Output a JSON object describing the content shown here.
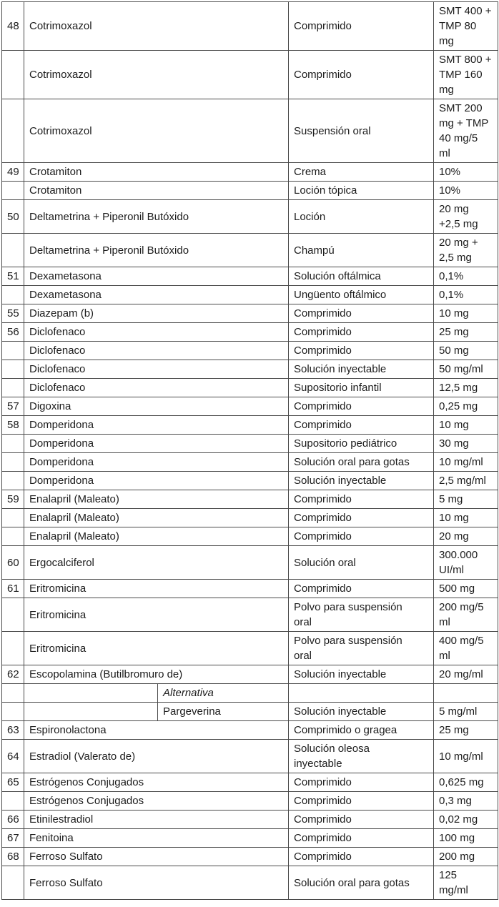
{
  "page": {
    "background_color": "#ffffff",
    "text_color": "#1c1c1c",
    "border_color": "#4a4a4a"
  },
  "table": {
    "rows": [
      {
        "num": "48",
        "name": "Cotrimoxazol",
        "form": "Comprimido",
        "dose": "SMT 400 +\nTMP 80\nmg"
      },
      {
        "num": "",
        "name": "Cotrimoxazol",
        "form": "Comprimido",
        "dose": "SMT 800 +\nTMP 160\nmg"
      },
      {
        "num": "",
        "name": "Cotrimoxazol",
        "form": "Suspensión oral",
        "dose": "SMT 200\nmg + TMP\n40 mg/5\nml"
      },
      {
        "num": "49",
        "name": "Crotamiton",
        "form": "Crema",
        "dose": "10%"
      },
      {
        "num": "",
        "name": "Crotamiton",
        "form": "Loción tópica",
        "dose": "10%"
      },
      {
        "num": "50",
        "name": "Deltametrina + Piperonil Butóxido",
        "form": "Loción",
        "dose": "20 mg\n+2,5 mg"
      },
      {
        "num": "",
        "name": "Deltametrina + Piperonil Butóxido",
        "form": "Champú",
        "dose": "20 mg +\n2,5 mg"
      },
      {
        "num": "51",
        "name": "Dexametasona",
        "form": "Solución oftálmica",
        "dose": "0,1%"
      },
      {
        "num": "",
        "name": "Dexametasona",
        "form": "Ungüento oftálmico",
        "dose": "0,1%"
      },
      {
        "num": "55",
        "name": "Diazepam (b)",
        "form": "Comprimido",
        "dose": "10 mg"
      },
      {
        "num": "56",
        "name": "Diclofenaco",
        "form": "Comprimido",
        "dose": "25 mg"
      },
      {
        "num": "",
        "name": "Diclofenaco",
        "form": "Comprimido",
        "dose": "50 mg"
      },
      {
        "num": "",
        "name": "Diclofenaco",
        "form": "Solución inyectable",
        "dose": "50 mg/ml"
      },
      {
        "num": "",
        "name": "Diclofenaco",
        "form": "Supositorio infantil",
        "dose": "12,5 mg"
      },
      {
        "num": "57",
        "name": "Digoxina",
        "form": "Comprimido",
        "dose": "0,25 mg"
      },
      {
        "num": "58",
        "name": "Domperidona",
        "form": "Comprimido",
        "dose": "10 mg"
      },
      {
        "num": "",
        "name": "Domperidona",
        "form": "Supositorio pediátrico",
        "dose": "30 mg"
      },
      {
        "num": "",
        "name": "Domperidona",
        "form": "Solución oral para gotas",
        "dose": "10 mg/ml"
      },
      {
        "num": "",
        "name": "Domperidona",
        "form": "Solución inyectable",
        "dose": "2,5 mg/ml"
      },
      {
        "num": "59",
        "name": "Enalapril (Maleato)",
        "form": "Comprimido",
        "dose": "5 mg"
      },
      {
        "num": "",
        "name": "Enalapril (Maleato)",
        "form": "Comprimido",
        "dose": "10 mg"
      },
      {
        "num": "",
        "name": "Enalapril (Maleato)",
        "form": "Comprimido",
        "dose": "20 mg"
      },
      {
        "num": "60",
        "name": "Ergocalciferol",
        "form": "Solución oral",
        "dose": "300.000\nUI/ml"
      },
      {
        "num": "61",
        "name": "Eritromicina",
        "form": "Comprimido",
        "dose": "500 mg"
      },
      {
        "num": "",
        "name": "Eritromicina",
        "form": "Polvo para suspensión\noral",
        "dose": "200 mg/5\nml"
      },
      {
        "num": "",
        "name": "Eritromicina",
        "form": "Polvo para suspensión\noral",
        "dose": "400 mg/5\nml"
      },
      {
        "num": "62",
        "name": "Escopolamina (Butilbromuro de)",
        "form": "Solución inyectable",
        "dose": "20 mg/ml"
      },
      {
        "num": "",
        "split": true,
        "name_left": "",
        "name_right": "Alternativa",
        "italic": true,
        "form": "",
        "dose": ""
      },
      {
        "num": "",
        "split": true,
        "name_left": "",
        "name_right": "Pargeverina",
        "italic": false,
        "form": "Solución inyectable",
        "dose": "5 mg/ml"
      },
      {
        "num": "63",
        "name": "Espironolactona",
        "form": "Comprimido o gragea",
        "dose": "25 mg"
      },
      {
        "num": "64",
        "name": "Estradiol (Valerato de)",
        "form": "Solución oleosa\ninyectable",
        "dose": "10 mg/ml"
      },
      {
        "num": "65",
        "name": "Estrógenos Conjugados",
        "form": "Comprimido",
        "dose": "0,625 mg"
      },
      {
        "num": "",
        "name": "Estrógenos Conjugados",
        "form": "Comprimido",
        "dose": "0,3 mg"
      },
      {
        "num": "66",
        "name": "Etinilestradiol",
        "form": "Comprimido",
        "dose": "0,02 mg"
      },
      {
        "num": "67",
        "name": "Fenitoina",
        "form": "Comprimido",
        "dose": "100 mg"
      },
      {
        "num": "68",
        "name": "Ferroso Sulfato",
        "form": "Comprimido",
        "dose": "200 mg"
      },
      {
        "num": "",
        "name": "Ferroso Sulfato",
        "form": "Solución oral para gotas",
        "dose": "125\nmg/ml"
      }
    ]
  }
}
